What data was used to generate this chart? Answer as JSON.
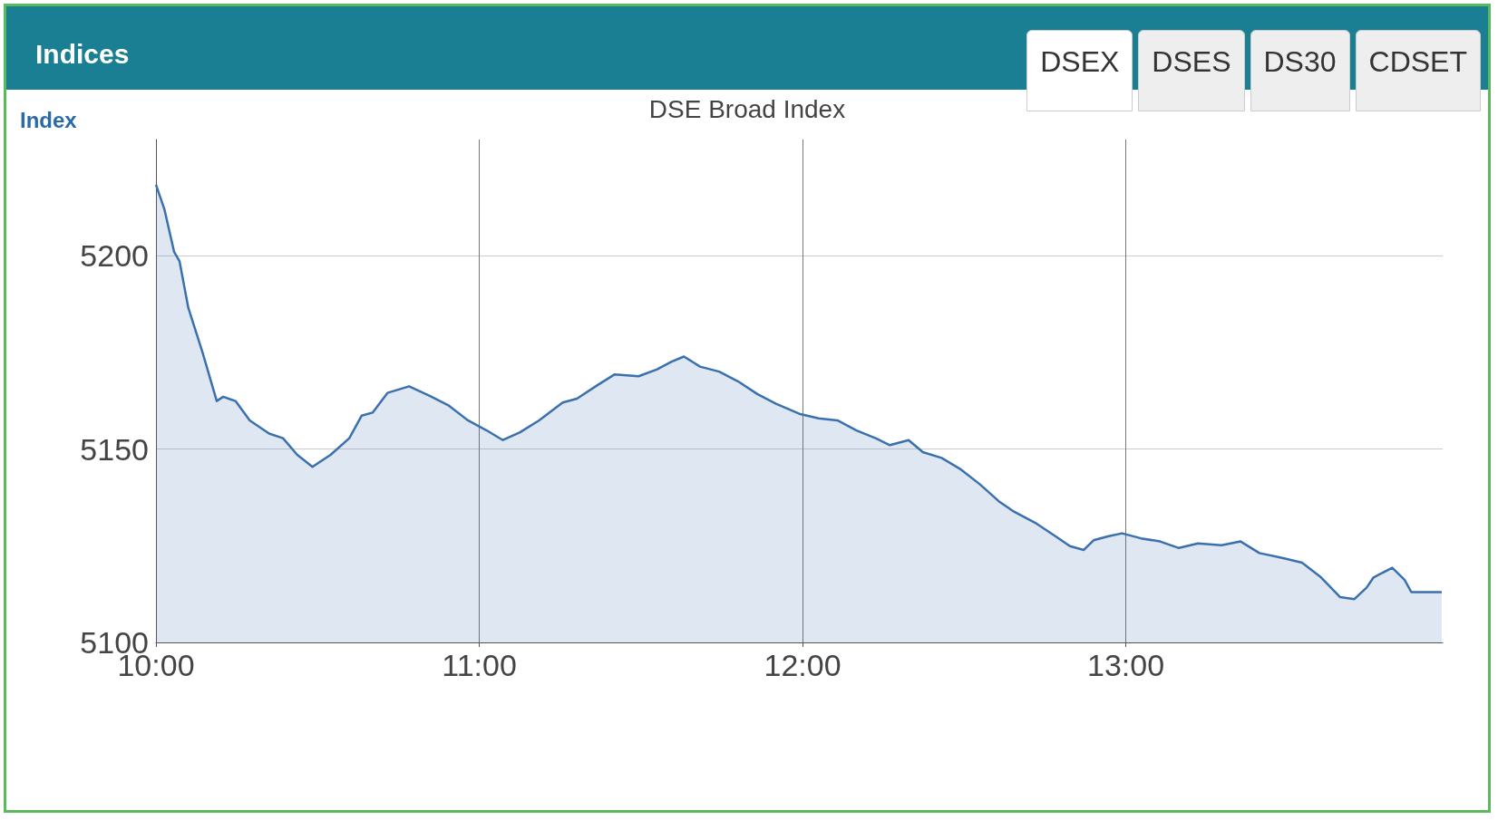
{
  "chart_data": {
    "type": "area",
    "title": "Indices",
    "subtitle": "DSE Broad Index",
    "ylabel": "Index",
    "annotations": [
      "DSEX",
      "DSES",
      "DS30",
      "CDSET"
    ],
    "x": [
      10.0,
      10.026,
      10.056,
      10.073,
      10.1,
      10.144,
      10.188,
      10.208,
      10.246,
      10.29,
      10.35,
      10.393,
      10.437,
      10.484,
      10.54,
      10.598,
      10.636,
      10.67,
      10.716,
      10.783,
      10.848,
      10.906,
      10.965,
      11.023,
      11.073,
      11.126,
      11.185,
      11.258,
      11.302,
      11.36,
      11.419,
      11.493,
      11.55,
      11.595,
      11.633,
      11.683,
      11.742,
      11.8,
      11.86,
      11.918,
      11.99,
      12.05,
      12.108,
      12.167,
      12.226,
      12.27,
      12.328,
      12.372,
      12.43,
      12.49,
      12.548,
      12.607,
      12.65,
      12.724,
      12.783,
      12.827,
      12.87,
      12.9,
      12.944,
      12.988,
      13.047,
      13.106,
      13.164,
      13.223,
      13.296,
      13.355,
      13.413,
      13.487,
      13.545,
      13.604,
      13.663,
      13.707,
      13.745,
      13.766,
      13.824,
      13.862,
      13.883,
      13.977
    ],
    "series": [
      {
        "color": "#3a70ae",
        "values": [
          5218.3,
          5212,
          5201,
          5198.5,
          5186.5,
          5175,
          5162.4,
          5163.5,
          5162.4,
          5157.4,
          5154,
          5152.8,
          5148.5,
          5145.4,
          5148.5,
          5152.8,
          5158.6,
          5159.4,
          5164.5,
          5166.2,
          5163.7,
          5161.2,
          5157.4,
          5154.8,
          5152.3,
          5154.3,
          5157.4,
          5162,
          5163,
          5166.2,
          5169.3,
          5168.8,
          5170.6,
          5172.6,
          5173.9,
          5171.3,
          5170,
          5167.5,
          5164.2,
          5161.7,
          5159.1,
          5157.9,
          5157.4,
          5154.8,
          5152.8,
          5151,
          5152.3,
          5149.2,
          5147.7,
          5144.7,
          5140.9,
          5136.5,
          5134,
          5130.7,
          5127.4,
          5124.9,
          5123.9,
          5126.4,
          5127.4,
          5128.2,
          5126.9,
          5126.1,
          5124.4,
          5125.6,
          5125.1,
          5126.1,
          5123.1,
          5121.8,
          5120.6,
          5116.8,
          5111.7,
          5111.2,
          5114.2,
          5116.8,
          5119.3,
          5116.2,
          5113,
          5113
        ]
      }
    ],
    "xlim": [
      10,
      13.98
    ],
    "xticks": [
      {
        "value": 10,
        "label": "10:00"
      },
      {
        "value": 11,
        "label": "11:00"
      },
      {
        "value": 12,
        "label": "12:00"
      },
      {
        "value": 13,
        "label": "13:00"
      }
    ],
    "ylim": [
      5100,
      5230
    ],
    "yticks": [
      5100,
      5150,
      5200
    ],
    "grid": true,
    "marker": "none",
    "line_style": "solid"
  }
}
